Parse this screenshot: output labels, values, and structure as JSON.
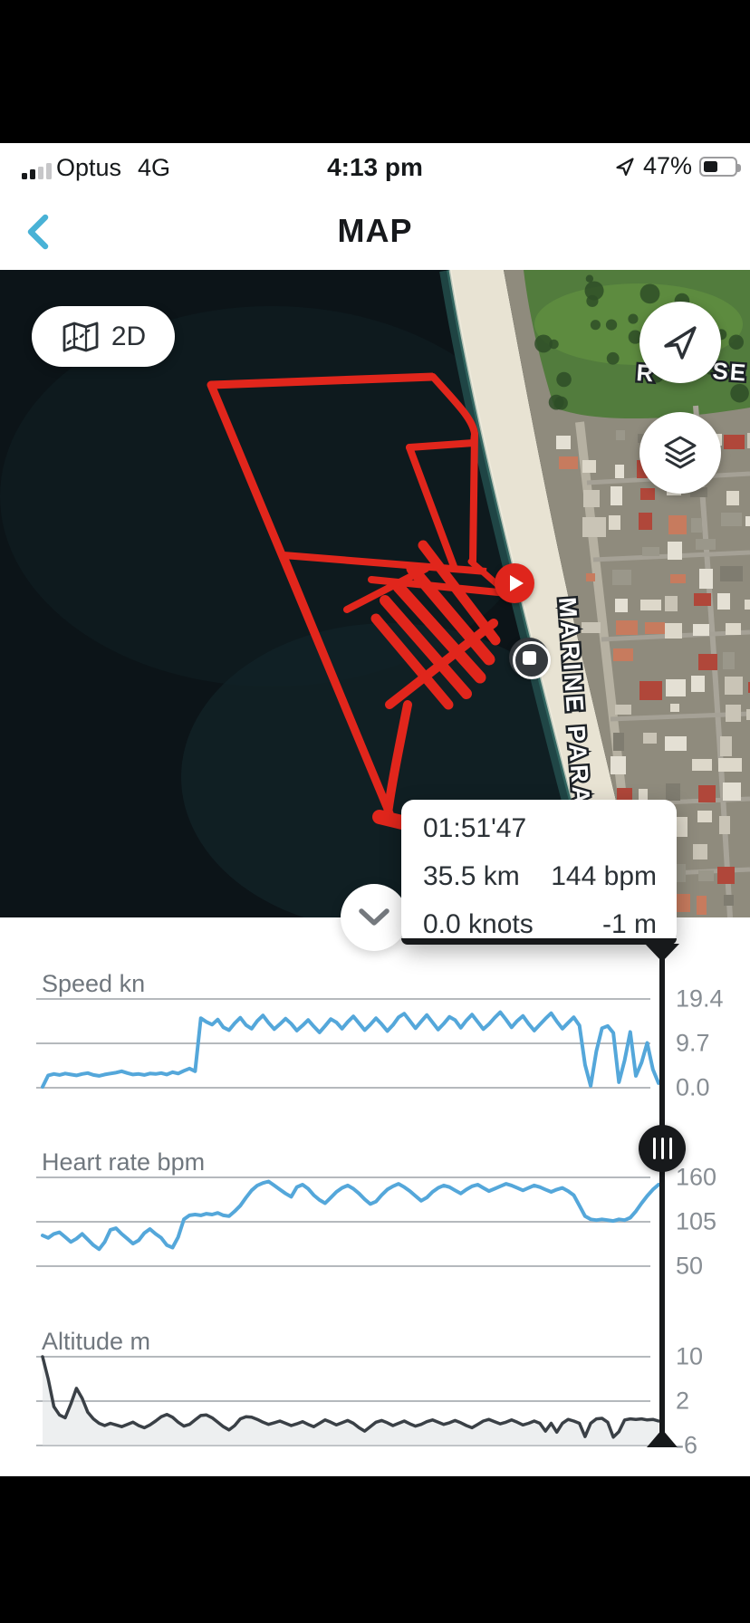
{
  "status_bar": {
    "carrier": "Optus",
    "network": "4G",
    "time": "4:13 pm",
    "battery_percent": "47%",
    "signal_icon": "cellular-signal-bars",
    "location_icon": "location-arrow",
    "battery_icon": "battery-half"
  },
  "header": {
    "title": "MAP",
    "back_icon": "chevron-left"
  },
  "map": {
    "mode_button_label": "2D",
    "mode_button_icon": "folded-map",
    "locate_icon": "navigation-arrow",
    "layers_icon": "map-layers",
    "play_icon": "play",
    "stop_icon": "stop",
    "collapse_icon": "chevron-down",
    "street_label": "MARINE PARADE",
    "street_label_fragment_left": "R",
    "street_label_fragment_right": "SE S",
    "track_color": "#e1261c"
  },
  "tooltip": {
    "duration": "01:51'47",
    "distance": "35.5 km",
    "heart_rate": "144 bpm",
    "speed": "0.0 knots",
    "altitude": "-1 m"
  },
  "scrubber": {
    "handle_icon": "grip-bars"
  },
  "chart_data": [
    {
      "type": "line",
      "title": "Speed kn",
      "ylabel": "kn",
      "tick_labels": [
        "19.4",
        "9.7",
        "0.0"
      ],
      "ticks": [
        19.4,
        9.7,
        0.0
      ],
      "ymin": 0,
      "ymax": 19.4,
      "grid": true,
      "color": "#54a7da",
      "stroke_width": 4,
      "area_fill": false,
      "values": [
        0.2,
        2.7,
        3.0,
        2.8,
        3.1,
        2.9,
        2.7,
        3.0,
        3.2,
        2.8,
        2.6,
        2.9,
        3.1,
        3.3,
        3.6,
        3.2,
        2.9,
        3.0,
        2.8,
        3.1,
        3.0,
        3.2,
        2.9,
        3.4,
        3.1,
        3.7,
        4.2,
        3.6,
        15.2,
        14.4,
        13.8,
        14.9,
        13.2,
        12.6,
        14.1,
        15.3,
        13.7,
        12.9,
        14.6,
        15.8,
        14.2,
        12.8,
        13.9,
        15.1,
        14.0,
        12.5,
        13.6,
        14.8,
        13.4,
        12.1,
        13.5,
        15.0,
        14.3,
        12.9,
        14.4,
        15.6,
        14.1,
        12.6,
        13.8,
        15.2,
        13.9,
        12.4,
        13.7,
        15.4,
        16.2,
        14.6,
        13.0,
        14.5,
        15.9,
        14.3,
        12.7,
        14.0,
        15.5,
        14.8,
        13.1,
        14.7,
        16.0,
        14.4,
        12.8,
        13.9,
        15.3,
        16.5,
        14.9,
        13.2,
        14.6,
        15.7,
        14.0,
        12.5,
        13.8,
        15.1,
        16.3,
        14.5,
        12.9,
        14.2,
        15.4,
        13.6,
        5.0,
        0.4,
        8.0,
        13.0,
        13.5,
        12.0,
        1.2,
        6.0,
        12.2,
        2.6,
        5.5,
        9.8,
        4.0,
        1.0
      ]
    },
    {
      "type": "line",
      "title": "Heart rate bpm",
      "ylabel": "bpm",
      "tick_labels": [
        "160",
        "105",
        "50"
      ],
      "ticks": [
        160,
        105,
        50
      ],
      "ymin": 50,
      "ymax": 160,
      "grid": true,
      "color": "#54a7da",
      "stroke_width": 4,
      "area_fill": false,
      "values": [
        88,
        85,
        90,
        92,
        86,
        80,
        84,
        90,
        83,
        76,
        71,
        80,
        95,
        97,
        90,
        84,
        78,
        82,
        91,
        96,
        90,
        85,
        76,
        73,
        86,
        108,
        113,
        114,
        113,
        115,
        114,
        116,
        113,
        112,
        118,
        125,
        135,
        144,
        150,
        153,
        155,
        150,
        145,
        140,
        136,
        148,
        151,
        146,
        138,
        132,
        128,
        135,
        142,
        147,
        150,
        146,
        140,
        133,
        127,
        130,
        138,
        145,
        149,
        152,
        148,
        143,
        137,
        131,
        135,
        142,
        147,
        150,
        148,
        144,
        140,
        145,
        149,
        151,
        147,
        143,
        146,
        149,
        152,
        150,
        147,
        144,
        147,
        150,
        148,
        145,
        142,
        145,
        147,
        143,
        138,
        125,
        112,
        108,
        107,
        108,
        107,
        106,
        108,
        107,
        110,
        118,
        128,
        137,
        145,
        151
      ]
    },
    {
      "type": "line",
      "title": "Altitude m",
      "ylabel": "m",
      "tick_labels": [
        "10",
        "2",
        "-6"
      ],
      "ticks": [
        10,
        2,
        -6
      ],
      "ymin": -6,
      "ymax": 10,
      "grid": true,
      "color": "#3a4046",
      "stroke_width": 3.5,
      "area_fill": true,
      "values": [
        10,
        6,
        1,
        -0.5,
        -1,
        1.5,
        4.3,
        2.5,
        0,
        -1.2,
        -2.0,
        -2.4,
        -2.0,
        -2.3,
        -2.6,
        -2.2,
        -1.8,
        -2.4,
        -2.8,
        -2.3,
        -1.6,
        -0.8,
        -0.4,
        -0.9,
        -1.8,
        -2.5,
        -2.2,
        -1.4,
        -0.6,
        -0.5,
        -1.0,
        -1.8,
        -2.6,
        -3.2,
        -2.4,
        -1.2,
        -0.8,
        -0.9,
        -1.3,
        -1.8,
        -2.2,
        -1.9,
        -1.6,
        -2.0,
        -2.4,
        -2.1,
        -1.7,
        -2.2,
        -2.6,
        -2.0,
        -1.4,
        -1.8,
        -2.3,
        -1.9,
        -1.5,
        -2.0,
        -2.8,
        -3.4,
        -2.6,
        -1.8,
        -1.5,
        -1.9,
        -2.4,
        -2.0,
        -1.6,
        -2.1,
        -2.5,
        -2.2,
        -1.7,
        -1.4,
        -1.8,
        -2.2,
        -1.9,
        -1.5,
        -1.9,
        -2.4,
        -2.8,
        -2.2,
        -1.6,
        -1.3,
        -1.7,
        -2.1,
        -1.8,
        -1.4,
        -1.8,
        -2.3,
        -2.0,
        -1.6,
        -2.0,
        -3.4,
        -2.0,
        -3.6,
        -2.0,
        -1.3,
        -1.6,
        -2.0,
        -4.4,
        -2.0,
        -1.2,
        -1.1,
        -1.8,
        -4.5,
        -3.5,
        -1.4,
        -1.2,
        -1.3,
        -1.2,
        -1.4,
        -1.3,
        -1.6
      ]
    }
  ]
}
